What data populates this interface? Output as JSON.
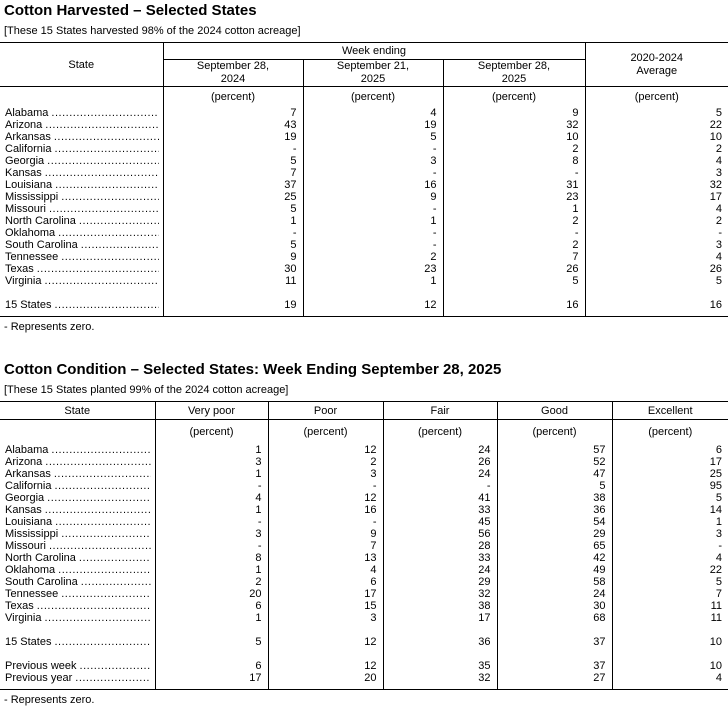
{
  "table1": {
    "title": "Cotton Harvested – Selected States",
    "note": "[These 15 States harvested 98% of the 2024 cotton acreage]",
    "state_header": "State",
    "week_ending_label": "Week ending",
    "avg_header": "2020-2024\nAverage",
    "date_columns": [
      "September 28,\n2024",
      "September 21,\n2025",
      "September 28,\n2025"
    ],
    "percent_label": "(percent)",
    "rows": [
      {
        "state": "Alabama",
        "values": [
          "7",
          "4",
          "9",
          "5"
        ]
      },
      {
        "state": "Arizona",
        "values": [
          "43",
          "19",
          "32",
          "22"
        ]
      },
      {
        "state": "Arkansas",
        "values": [
          "19",
          "5",
          "10",
          "10"
        ]
      },
      {
        "state": "California",
        "values": [
          "-",
          "-",
          "2",
          "2"
        ]
      },
      {
        "state": "Georgia",
        "values": [
          "5",
          "3",
          "8",
          "4"
        ]
      },
      {
        "state": "Kansas",
        "values": [
          "7",
          "-",
          "-",
          "3"
        ]
      },
      {
        "state": "Louisiana",
        "values": [
          "37",
          "16",
          "31",
          "32"
        ]
      },
      {
        "state": "Mississippi",
        "values": [
          "25",
          "9",
          "23",
          "17"
        ]
      },
      {
        "state": "Missouri",
        "values": [
          "5",
          "-",
          "1",
          "4"
        ]
      },
      {
        "state": "North Carolina",
        "values": [
          "1",
          "1",
          "2",
          "2"
        ]
      },
      {
        "state": "Oklahoma",
        "values": [
          "-",
          "-",
          "-",
          "-"
        ]
      },
      {
        "state": "South Carolina",
        "values": [
          "5",
          "-",
          "2",
          "3"
        ]
      },
      {
        "state": "Tennessee",
        "values": [
          "9",
          "2",
          "7",
          "4"
        ]
      },
      {
        "state": "Texas",
        "values": [
          "30",
          "23",
          "26",
          "26"
        ]
      },
      {
        "state": "Virginia",
        "values": [
          "11",
          "1",
          "5",
          "5"
        ]
      }
    ],
    "total_row": {
      "state": "15 States",
      "values": [
        "19",
        "12",
        "16",
        "16"
      ]
    },
    "footnote": "- Represents zero."
  },
  "table2": {
    "title": "Cotton Condition – Selected States: Week Ending September 28, 2025",
    "note": "[These 15 States planted 99% of the 2024 cotton acreage]",
    "state_header": "State",
    "columns": [
      "Very poor",
      "Poor",
      "Fair",
      "Good",
      "Excellent"
    ],
    "percent_label": "(percent)",
    "rows": [
      {
        "state": "Alabama",
        "values": [
          "1",
          "12",
          "24",
          "57",
          "6"
        ]
      },
      {
        "state": "Arizona",
        "values": [
          "3",
          "2",
          "26",
          "52",
          "17"
        ]
      },
      {
        "state": "Arkansas",
        "values": [
          "1",
          "3",
          "24",
          "47",
          "25"
        ]
      },
      {
        "state": "California",
        "values": [
          "-",
          "-",
          "-",
          "5",
          "95"
        ]
      },
      {
        "state": "Georgia",
        "values": [
          "4",
          "12",
          "41",
          "38",
          "5"
        ]
      },
      {
        "state": "Kansas",
        "values": [
          "1",
          "16",
          "33",
          "36",
          "14"
        ]
      },
      {
        "state": "Louisiana",
        "values": [
          "-",
          "-",
          "45",
          "54",
          "1"
        ]
      },
      {
        "state": "Mississippi",
        "values": [
          "3",
          "9",
          "56",
          "29",
          "3"
        ]
      },
      {
        "state": "Missouri",
        "values": [
          "-",
          "7",
          "28",
          "65",
          "-"
        ]
      },
      {
        "state": "North Carolina",
        "values": [
          "8",
          "13",
          "33",
          "42",
          "4"
        ]
      },
      {
        "state": "Oklahoma",
        "values": [
          "1",
          "4",
          "24",
          "49",
          "22"
        ]
      },
      {
        "state": "South Carolina",
        "values": [
          "2",
          "6",
          "29",
          "58",
          "5"
        ]
      },
      {
        "state": "Tennessee",
        "values": [
          "20",
          "17",
          "32",
          "24",
          "7"
        ]
      },
      {
        "state": "Texas",
        "values": [
          "6",
          "15",
          "38",
          "30",
          "11"
        ]
      },
      {
        "state": "Virginia",
        "values": [
          "1",
          "3",
          "17",
          "68",
          "11"
        ]
      }
    ],
    "total_row": {
      "state": "15 States",
      "values": [
        "5",
        "12",
        "36",
        "37",
        "10"
      ]
    },
    "extra_rows": [
      {
        "state": "Previous week",
        "values": [
          "6",
          "12",
          "35",
          "37",
          "10"
        ]
      },
      {
        "state": "Previous year",
        "values": [
          "17",
          "20",
          "32",
          "27",
          "4"
        ]
      }
    ],
    "footnote": "- Represents zero."
  }
}
